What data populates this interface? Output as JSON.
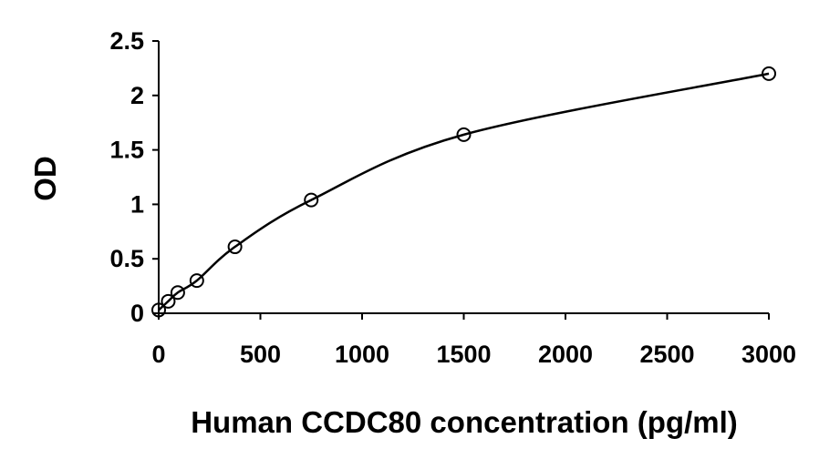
{
  "chart_data": {
    "type": "scatter",
    "title": "",
    "xlabel": "Human CCDC80 concentration (pg/ml)",
    "ylabel": "OD",
    "xlim": [
      0,
      3000
    ],
    "ylim": [
      0,
      2.5
    ],
    "xticks": [
      0,
      500,
      1000,
      1500,
      2000,
      2500,
      3000
    ],
    "yticks": [
      0,
      0.5,
      1,
      1.5,
      2,
      2.5
    ],
    "xtick_labels": [
      "0",
      "500",
      "1000",
      "1500",
      "2000",
      "2500",
      "3000"
    ],
    "ytick_labels": [
      "0",
      "0.5",
      "1",
      "1.5",
      "2",
      "2.5"
    ],
    "grid": false,
    "legend": "none",
    "series": [
      {
        "marker": "open-circle",
        "fit_line": "smooth",
        "x": [
          0,
          46.9,
          93.75,
          187.5,
          375,
          750,
          1500,
          3000
        ],
        "y": [
          0.03,
          0.11,
          0.19,
          0.3,
          0.61,
          1.04,
          1.64,
          2.2
        ]
      }
    ]
  }
}
